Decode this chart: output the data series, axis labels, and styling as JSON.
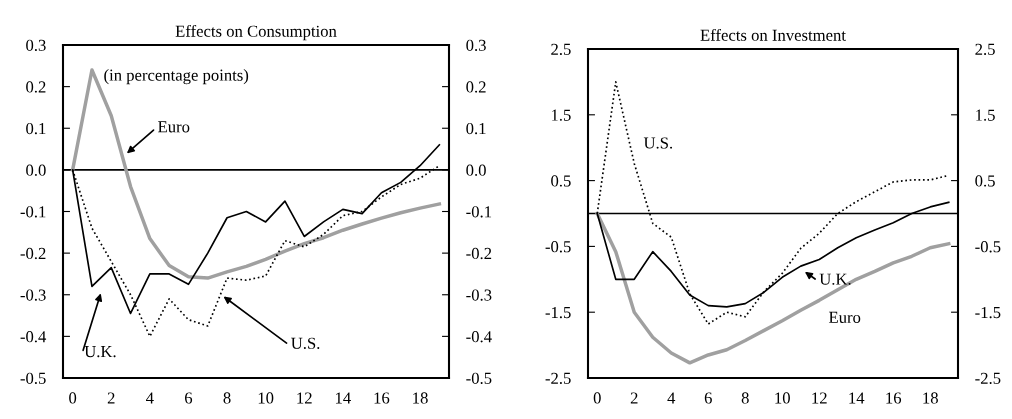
{
  "chart_data": [
    {
      "type": "line",
      "title": "Effects on Consumption",
      "annotations": [
        "(in percentage points)"
      ],
      "x": [
        0,
        1,
        2,
        3,
        4,
        5,
        6,
        7,
        8,
        9,
        10,
        11,
        12,
        13,
        14,
        15,
        16,
        17,
        18,
        19
      ],
      "xlim": [
        -0.5,
        19.5
      ],
      "xticks": [
        0,
        2,
        4,
        6,
        8,
        10,
        12,
        14,
        16,
        18
      ],
      "ylim": [
        -0.5,
        0.3
      ],
      "yticks": [
        {
          "value": -0.5,
          "label": "-0.5"
        },
        {
          "value": -0.4,
          "label": "-0.4"
        },
        {
          "value": -0.3,
          "label": "-0.3"
        },
        {
          "value": -0.2,
          "label": "-0.2"
        },
        {
          "value": -0.1,
          "label": "-0.1"
        },
        {
          "value": 0,
          "label": "0.0"
        },
        {
          "value": 0.1,
          "label": "0.1"
        },
        {
          "value": 0.2,
          "label": "0.2"
        },
        {
          "value": 0.3,
          "label": "0.3"
        }
      ],
      "y2lim": [
        -0.5,
        0.3
      ],
      "y2ticks": [
        {
          "value": -0.5,
          "label": "-0.5"
        },
        {
          "value": -0.4,
          "label": "-0.4"
        },
        {
          "value": -0.3,
          "label": "-0.3"
        },
        {
          "value": -0.2,
          "label": "-0.2"
        },
        {
          "value": -0.1,
          "label": "-0.1"
        },
        {
          "value": 0,
          "label": "0.0"
        },
        {
          "value": 0.1,
          "label": "0.1"
        },
        {
          "value": 0.2,
          "label": "0.2"
        },
        {
          "value": 0.3,
          "label": "0.3"
        }
      ],
      "ref_lines": [
        {
          "axis": "y",
          "value": 0,
          "color": "#000000"
        }
      ],
      "series": [
        {
          "name": "Euro",
          "color": "#a0a0a0",
          "line_style": "solid",
          "values": [
            0,
            0.24,
            0.13,
            -0.04,
            -0.165,
            -0.23,
            -0.257,
            -0.26,
            -0.245,
            -0.232,
            -0.215,
            -0.195,
            -0.177,
            -0.163,
            -0.145,
            -0.13,
            -0.116,
            -0.103,
            -0.092,
            -0.082
          ]
        },
        {
          "name": "U.K.",
          "color": "#000000",
          "line_style": "solid",
          "values": [
            0,
            -0.28,
            -0.235,
            -0.345,
            -0.25,
            -0.25,
            -0.275,
            -0.2,
            -0.115,
            -0.1,
            -0.125,
            -0.075,
            -0.16,
            -0.125,
            -0.095,
            -0.105,
            -0.055,
            -0.03,
            0.01,
            0.06
          ]
        },
        {
          "name": "U.S.",
          "color": "#000000",
          "line_style": "dotted",
          "values": [
            0,
            -0.14,
            -0.22,
            -0.3,
            -0.4,
            -0.31,
            -0.36,
            -0.375,
            -0.26,
            -0.265,
            -0.255,
            -0.17,
            -0.185,
            -0.155,
            -0.11,
            -0.1,
            -0.065,
            -0.035,
            -0.02,
            0.01
          ]
        }
      ]
    },
    {
      "type": "line",
      "title": "Effects on Investment",
      "x": [
        0,
        1,
        2,
        3,
        4,
        5,
        6,
        7,
        8,
        9,
        10,
        11,
        12,
        13,
        14,
        15,
        16,
        17,
        18,
        19
      ],
      "xlim": [
        -0.5,
        19.5
      ],
      "xticks": [
        0,
        2,
        4,
        6,
        8,
        10,
        12,
        14,
        16,
        18
      ],
      "ylim": [
        -2.5,
        2.5
      ],
      "yticks": [
        -2.5,
        -1.5,
        -0.5,
        0.5,
        1.5,
        2.5
      ],
      "y2lim": [
        -2.5,
        2.5
      ],
      "y2ticks": [
        -2.5,
        -1.5,
        -0.5,
        0.5,
        1.5,
        2.5
      ],
      "ref_lines": [
        {
          "axis": "y",
          "value": 0,
          "color": "#000000"
        }
      ],
      "series": [
        {
          "name": "Euro",
          "color": "#a0a0a0",
          "line_style": "solid",
          "values": [
            0,
            -0.58,
            -1.5,
            -1.88,
            -2.12,
            -2.27,
            -2.15,
            -2.07,
            -1.93,
            -1.78,
            -1.63,
            -1.47,
            -1.32,
            -1.16,
            -1.0,
            -0.88,
            -0.75,
            -0.65,
            -0.52,
            -0.46
          ]
        },
        {
          "name": "U.K.",
          "color": "#000000",
          "line_style": "solid",
          "values": [
            0,
            -1.0,
            -1.0,
            -0.58,
            -0.88,
            -1.24,
            -1.4,
            -1.42,
            -1.37,
            -1.2,
            -0.97,
            -0.8,
            -0.7,
            -0.52,
            -0.37,
            -0.25,
            -0.14,
            0.0,
            0.1,
            0.17
          ]
        },
        {
          "name": "U.S.",
          "color": "#000000",
          "line_style": "dotted",
          "values": [
            0,
            2.0,
            0.76,
            -0.15,
            -0.36,
            -1.22,
            -1.68,
            -1.5,
            -1.57,
            -1.19,
            -0.91,
            -0.53,
            -0.3,
            0.0,
            0.18,
            0.33,
            0.48,
            0.51,
            0.51,
            0.58
          ]
        }
      ]
    }
  ]
}
